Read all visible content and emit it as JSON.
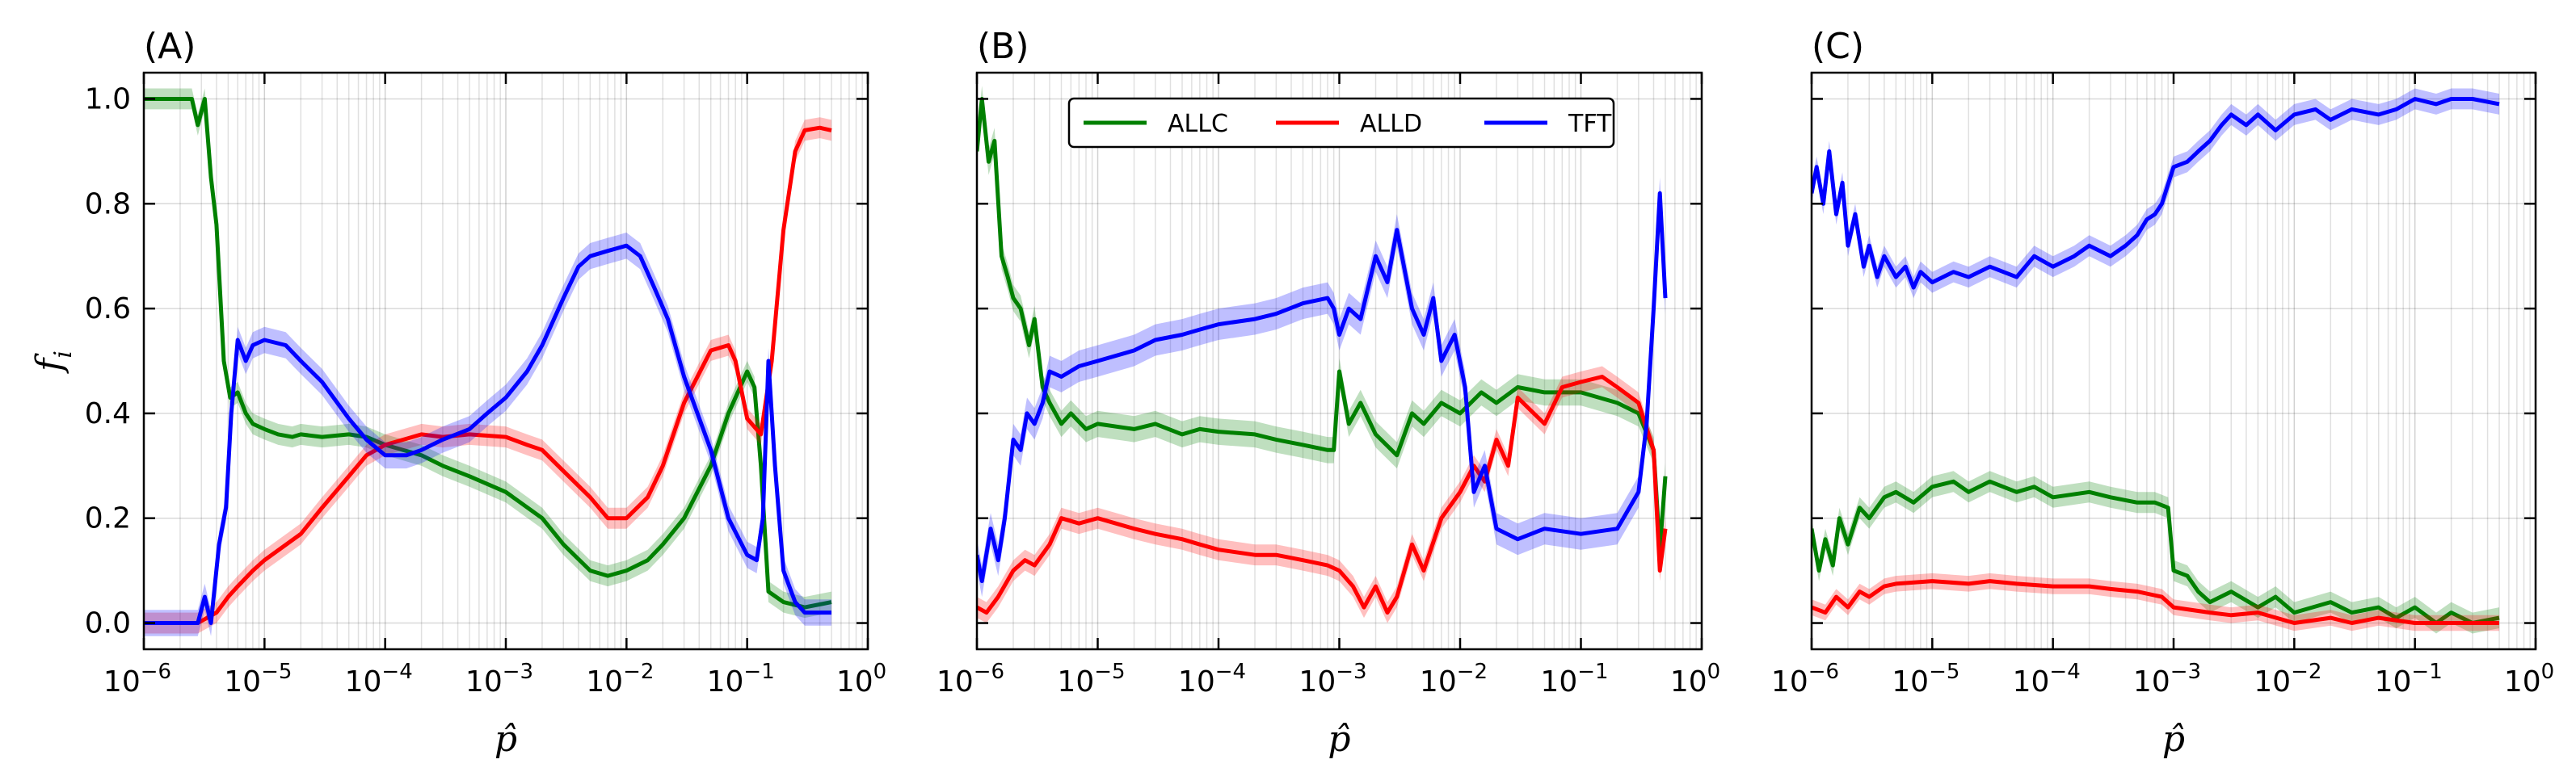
{
  "chart_data": [
    {
      "type": "line",
      "panel_label": "(A)",
      "xlabel": "p̂",
      "ylabel": "f",
      "ylabel_sub": "i",
      "xscale": "log",
      "xlim": [
        1e-06,
        1
      ],
      "ylim": [
        -0.05,
        1.05
      ],
      "grid": true,
      "show_yticklabels": true,
      "x_ticks": [
        "10",
        "10",
        "10",
        "10",
        "10",
        "10",
        "10"
      ],
      "x_tick_exponents": [
        "−6",
        "−5",
        "−4",
        "−3",
        "−2",
        "−1",
        "0"
      ],
      "y_ticks": [
        "0.0",
        "0.2",
        "0.4",
        "0.6",
        "0.8",
        "1.0"
      ],
      "y_tick_values": [
        0,
        0.2,
        0.4,
        0.6,
        0.8,
        1.0
      ],
      "series": [
        {
          "name": "ALLC",
          "color": "#008000",
          "band": 0.02,
          "x": [
            1e-06,
            2.5e-06,
            2.8e-06,
            3.2e-06,
            3.6e-06,
            4e-06,
            4.6e-06,
            5.2e-06,
            6e-06,
            7e-06,
            8e-06,
            1e-05,
            1.3e-05,
            1.7e-05,
            2e-05,
            3e-05,
            5e-05,
            7e-05,
            0.0001,
            0.0002,
            0.0003,
            0.0005,
            0.001,
            0.002,
            0.003,
            0.005,
            0.007,
            0.01,
            0.015,
            0.02,
            0.03,
            0.05,
            0.07,
            0.1,
            0.115,
            0.13,
            0.15,
            0.2,
            0.3,
            0.5
          ],
          "y": [
            1.0,
            1.0,
            0.95,
            1.0,
            0.85,
            0.76,
            0.5,
            0.43,
            0.44,
            0.4,
            0.38,
            0.37,
            0.36,
            0.355,
            0.36,
            0.355,
            0.36,
            0.355,
            0.34,
            0.32,
            0.3,
            0.28,
            0.25,
            0.2,
            0.15,
            0.1,
            0.09,
            0.1,
            0.12,
            0.15,
            0.2,
            0.3,
            0.4,
            0.48,
            0.45,
            0.3,
            0.06,
            0.04,
            0.03,
            0.04
          ]
        },
        {
          "name": "ALLD",
          "color": "#ff0000",
          "band": 0.02,
          "x": [
            1e-06,
            2.8e-06,
            4e-06,
            5e-06,
            6e-06,
            8e-06,
            1e-05,
            2e-05,
            3e-05,
            5e-05,
            7e-05,
            0.0001,
            0.0002,
            0.0003,
            0.0005,
            0.001,
            0.0015,
            0.002,
            0.003,
            0.005,
            0.007,
            0.01,
            0.015,
            0.02,
            0.03,
            0.05,
            0.07,
            0.08,
            0.1,
            0.13,
            0.16,
            0.2,
            0.25,
            0.3,
            0.4,
            0.5
          ],
          "y": [
            0.0,
            0.0,
            0.02,
            0.05,
            0.07,
            0.1,
            0.12,
            0.17,
            0.22,
            0.28,
            0.32,
            0.34,
            0.36,
            0.355,
            0.36,
            0.355,
            0.34,
            0.33,
            0.29,
            0.24,
            0.2,
            0.2,
            0.24,
            0.3,
            0.42,
            0.52,
            0.53,
            0.5,
            0.39,
            0.36,
            0.5,
            0.75,
            0.9,
            0.94,
            0.945,
            0.94
          ]
        },
        {
          "name": "TFT",
          "color": "#0000ff",
          "band": 0.025,
          "x": [
            1e-06,
            2.8e-06,
            3.2e-06,
            3.6e-06,
            4.2e-06,
            4.8e-06,
            5.3e-06,
            6e-06,
            7e-06,
            8e-06,
            1e-05,
            1.5e-05,
            2e-05,
            3e-05,
            5e-05,
            7e-05,
            0.0001,
            0.00015,
            0.0002,
            0.0003,
            0.0005,
            0.0007,
            0.001,
            0.0015,
            0.002,
            0.003,
            0.004,
            0.005,
            0.007,
            0.01,
            0.013,
            0.017,
            0.022,
            0.03,
            0.05,
            0.07,
            0.1,
            0.12,
            0.135,
            0.15,
            0.17,
            0.2,
            0.25,
            0.3,
            0.5
          ],
          "y": [
            0.0,
            0.0,
            0.05,
            0.0,
            0.15,
            0.22,
            0.4,
            0.54,
            0.5,
            0.53,
            0.54,
            0.53,
            0.5,
            0.46,
            0.39,
            0.35,
            0.32,
            0.32,
            0.33,
            0.35,
            0.37,
            0.4,
            0.43,
            0.48,
            0.53,
            0.62,
            0.68,
            0.7,
            0.71,
            0.72,
            0.7,
            0.64,
            0.58,
            0.47,
            0.33,
            0.2,
            0.13,
            0.12,
            0.2,
            0.5,
            0.3,
            0.1,
            0.04,
            0.02,
            0.02
          ]
        }
      ]
    },
    {
      "type": "line",
      "panel_label": "(B)",
      "xlabel": "p̂",
      "xscale": "log",
      "xlim": [
        1e-06,
        1
      ],
      "ylim": [
        -0.05,
        1.05
      ],
      "grid": true,
      "show_yticklabels": false,
      "y_tick_values": [
        0,
        0.2,
        0.4,
        0.6,
        0.8,
        1.0
      ],
      "x_ticks": [
        "10",
        "10",
        "10",
        "10",
        "10",
        "10",
        "10"
      ],
      "x_tick_exponents": [
        "−6",
        "−5",
        "−4",
        "−3",
        "−2",
        "−1",
        "0"
      ],
      "legend": {
        "placement": "top-center",
        "entries": [
          "ALLC",
          "ALLD",
          "TFT"
        ]
      },
      "series": [
        {
          "name": "ALLC",
          "color": "#008000",
          "band": 0.025,
          "x": [
            1e-06,
            1.1e-06,
            1.25e-06,
            1.4e-06,
            1.6e-06,
            1.8e-06,
            2e-06,
            2.3e-06,
            2.7e-06,
            3e-06,
            3.5e-06,
            4e-06,
            5e-06,
            6e-06,
            8e-06,
            1e-05,
            2e-05,
            3e-05,
            5e-05,
            7e-05,
            0.0001,
            0.0002,
            0.0003,
            0.0005,
            0.0008,
            0.0009,
            0.001,
            0.0012,
            0.0015,
            0.002,
            0.003,
            0.004,
            0.005,
            0.007,
            0.01,
            0.015,
            0.02,
            0.03,
            0.05,
            0.1,
            0.2,
            0.3,
            0.4,
            0.45,
            0.5
          ],
          "y": [
            0.9,
            1.0,
            0.88,
            0.92,
            0.7,
            0.66,
            0.62,
            0.6,
            0.53,
            0.58,
            0.45,
            0.42,
            0.38,
            0.4,
            0.37,
            0.38,
            0.37,
            0.38,
            0.36,
            0.37,
            0.365,
            0.36,
            0.35,
            0.34,
            0.33,
            0.33,
            0.48,
            0.38,
            0.42,
            0.36,
            0.32,
            0.4,
            0.38,
            0.42,
            0.4,
            0.44,
            0.42,
            0.45,
            0.44,
            0.44,
            0.42,
            0.4,
            0.33,
            0.14,
            0.28
          ]
        },
        {
          "name": "ALLD",
          "color": "#ff0000",
          "band": 0.02,
          "x": [
            1e-06,
            1.2e-06,
            1.5e-06,
            2e-06,
            2.5e-06,
            3e-06,
            4e-06,
            5e-06,
            7e-06,
            1e-05,
            2e-05,
            3e-05,
            5e-05,
            7e-05,
            0.0001,
            0.0002,
            0.0003,
            0.0005,
            0.0008,
            0.001,
            0.0013,
            0.0016,
            0.002,
            0.0025,
            0.003,
            0.004,
            0.005,
            0.007,
            0.01,
            0.013,
            0.016,
            0.02,
            0.025,
            0.03,
            0.05,
            0.07,
            0.1,
            0.15,
            0.2,
            0.3,
            0.4,
            0.45,
            0.5
          ],
          "y": [
            0.03,
            0.02,
            0.05,
            0.1,
            0.12,
            0.11,
            0.15,
            0.2,
            0.19,
            0.2,
            0.18,
            0.17,
            0.16,
            0.15,
            0.14,
            0.13,
            0.13,
            0.12,
            0.11,
            0.1,
            0.07,
            0.03,
            0.07,
            0.02,
            0.05,
            0.15,
            0.1,
            0.2,
            0.25,
            0.3,
            0.27,
            0.35,
            0.3,
            0.43,
            0.38,
            0.45,
            0.46,
            0.47,
            0.45,
            0.42,
            0.33,
            0.1,
            0.18
          ]
        },
        {
          "name": "TFT",
          "color": "#0000ff",
          "band": 0.03,
          "x": [
            1e-06,
            1.1e-06,
            1.3e-06,
            1.5e-06,
            1.7e-06,
            2e-06,
            2.3e-06,
            2.6e-06,
            3e-06,
            3.5e-06,
            4e-06,
            5e-06,
            7e-06,
            1e-05,
            2e-05,
            3e-05,
            5e-05,
            7e-05,
            0.0001,
            0.0002,
            0.0003,
            0.0005,
            0.0008,
            0.0009,
            0.001,
            0.0012,
            0.0015,
            0.002,
            0.0025,
            0.003,
            0.004,
            0.005,
            0.006,
            0.007,
            0.009,
            0.011,
            0.013,
            0.016,
            0.02,
            0.03,
            0.05,
            0.1,
            0.2,
            0.3,
            0.35,
            0.4,
            0.45,
            0.5
          ],
          "y": [
            0.13,
            0.08,
            0.18,
            0.12,
            0.2,
            0.35,
            0.33,
            0.4,
            0.38,
            0.42,
            0.48,
            0.47,
            0.49,
            0.5,
            0.52,
            0.54,
            0.55,
            0.56,
            0.57,
            0.58,
            0.59,
            0.61,
            0.62,
            0.6,
            0.55,
            0.6,
            0.58,
            0.7,
            0.65,
            0.75,
            0.6,
            0.55,
            0.62,
            0.5,
            0.55,
            0.45,
            0.25,
            0.3,
            0.18,
            0.16,
            0.18,
            0.17,
            0.18,
            0.25,
            0.38,
            0.6,
            0.82,
            0.62
          ]
        }
      ]
    },
    {
      "type": "line",
      "panel_label": "(C)",
      "xlabel": "p̂",
      "xscale": "log",
      "xlim": [
        1e-06,
        1
      ],
      "ylim": [
        -0.05,
        1.05
      ],
      "grid": true,
      "show_yticklabels": false,
      "y_tick_values": [
        0,
        0.2,
        0.4,
        0.6,
        0.8,
        1.0
      ],
      "x_ticks": [
        "10",
        "10",
        "10",
        "10",
        "10",
        "10",
        "10"
      ],
      "x_tick_exponents": [
        "−6",
        "−5",
        "−4",
        "−3",
        "−2",
        "−1",
        "0"
      ],
      "series": [
        {
          "name": "ALLC",
          "color": "#008000",
          "band": 0.02,
          "x": [
            1e-06,
            1.15e-06,
            1.3e-06,
            1.5e-06,
            1.7e-06,
            2e-06,
            2.5e-06,
            3e-06,
            4e-06,
            5e-06,
            7e-06,
            1e-05,
            1.5e-05,
            2e-05,
            3e-05,
            5e-05,
            7e-05,
            0.0001,
            0.0002,
            0.0003,
            0.0005,
            0.0007,
            0.0009,
            0.001,
            0.0013,
            0.0016,
            0.002,
            0.003,
            0.005,
            0.007,
            0.01,
            0.02,
            0.03,
            0.05,
            0.07,
            0.1,
            0.15,
            0.2,
            0.3,
            0.5
          ],
          "y": [
            0.18,
            0.1,
            0.16,
            0.11,
            0.2,
            0.15,
            0.22,
            0.2,
            0.24,
            0.25,
            0.23,
            0.26,
            0.27,
            0.25,
            0.27,
            0.25,
            0.26,
            0.24,
            0.25,
            0.24,
            0.23,
            0.23,
            0.22,
            0.1,
            0.09,
            0.06,
            0.04,
            0.06,
            0.03,
            0.05,
            0.02,
            0.04,
            0.02,
            0.03,
            0.01,
            0.03,
            0.0,
            0.02,
            0.0,
            0.01
          ]
        },
        {
          "name": "ALLD",
          "color": "#ff0000",
          "band": 0.015,
          "x": [
            1e-06,
            1.3e-06,
            1.6e-06,
            2e-06,
            2.5e-06,
            3e-06,
            4e-06,
            5e-06,
            1e-05,
            2e-05,
            3e-05,
            5e-05,
            0.0001,
            0.0002,
            0.0003,
            0.0005,
            0.0008,
            0.001,
            0.002,
            0.003,
            0.005,
            0.01,
            0.02,
            0.03,
            0.05,
            0.1,
            0.2,
            0.3,
            0.5
          ],
          "y": [
            0.03,
            0.02,
            0.05,
            0.03,
            0.06,
            0.05,
            0.07,
            0.075,
            0.08,
            0.075,
            0.08,
            0.075,
            0.07,
            0.07,
            0.065,
            0.06,
            0.05,
            0.03,
            0.02,
            0.015,
            0.02,
            0.0,
            0.01,
            0.0,
            0.01,
            0.0,
            0.0,
            0.0,
            0.0
          ]
        },
        {
          "name": "TFT",
          "color": "#0000ff",
          "band": 0.02,
          "x": [
            1e-06,
            1.1e-06,
            1.25e-06,
            1.4e-06,
            1.6e-06,
            1.8e-06,
            2e-06,
            2.3e-06,
            2.7e-06,
            3e-06,
            3.5e-06,
            4e-06,
            5e-06,
            6e-06,
            7e-06,
            8e-06,
            1e-05,
            1.5e-05,
            2e-05,
            3e-05,
            5e-05,
            7e-05,
            0.0001,
            0.00015,
            0.0002,
            0.0003,
            0.0004,
            0.0005,
            0.0006,
            0.0007,
            0.0008,
            0.001,
            0.0013,
            0.0016,
            0.002,
            0.0025,
            0.003,
            0.004,
            0.005,
            0.007,
            0.01,
            0.015,
            0.02,
            0.03,
            0.05,
            0.07,
            0.1,
            0.15,
            0.2,
            0.3,
            0.5
          ],
          "y": [
            0.82,
            0.87,
            0.8,
            0.9,
            0.78,
            0.84,
            0.72,
            0.78,
            0.68,
            0.72,
            0.66,
            0.7,
            0.66,
            0.68,
            0.64,
            0.67,
            0.65,
            0.67,
            0.66,
            0.68,
            0.66,
            0.7,
            0.68,
            0.7,
            0.72,
            0.7,
            0.72,
            0.74,
            0.77,
            0.78,
            0.8,
            0.87,
            0.88,
            0.9,
            0.92,
            0.95,
            0.97,
            0.95,
            0.97,
            0.94,
            0.97,
            0.98,
            0.96,
            0.98,
            0.97,
            0.98,
            1.0,
            0.99,
            1.0,
            1.0,
            0.99
          ]
        }
      ]
    }
  ]
}
